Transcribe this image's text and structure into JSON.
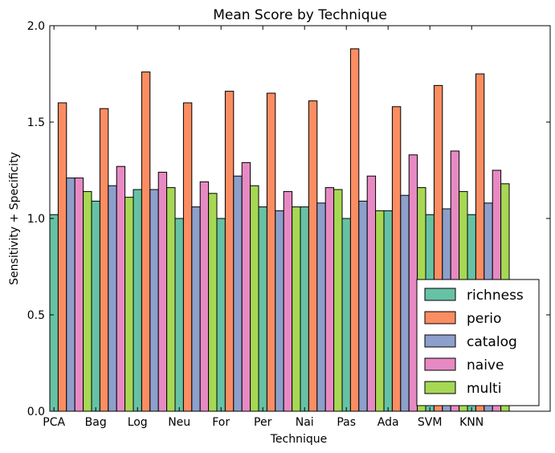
{
  "chart_data": {
    "type": "bar",
    "title": "Mean Score by Technique",
    "xlabel": "Technique",
    "ylabel": "Sensitivity + Specificity",
    "ylim": [
      0,
      2.0
    ],
    "yticks": [
      "0.0",
      "0.5",
      "1.0",
      "1.5",
      "2.0"
    ],
    "categories": [
      "PCA",
      "Bag",
      "Log",
      "Neu",
      "For",
      "Per",
      "Nai",
      "Pas",
      "Ada",
      "SVM",
      "KNN"
    ],
    "series": [
      {
        "name": "richness",
        "color": "#66c2a5",
        "values": [
          1.02,
          1.09,
          1.15,
          1.0,
          1.0,
          1.06,
          1.06,
          1.0,
          1.04,
          1.02,
          1.02
        ]
      },
      {
        "name": "perio",
        "color": "#fc8d62",
        "values": [
          1.6,
          1.57,
          1.76,
          1.6,
          1.66,
          1.65,
          1.61,
          1.88,
          1.58,
          1.69,
          1.75
        ]
      },
      {
        "name": "catalog",
        "color": "#8da0cb",
        "values": [
          1.21,
          1.17,
          1.15,
          1.06,
          1.22,
          1.04,
          1.08,
          1.09,
          1.12,
          1.05,
          1.08
        ]
      },
      {
        "name": "naive",
        "color": "#e78ac3",
        "values": [
          1.21,
          1.27,
          1.24,
          1.19,
          1.29,
          1.14,
          1.16,
          1.22,
          1.33,
          1.35,
          1.25
        ]
      },
      {
        "name": "multi",
        "color": "#a6d854",
        "values": [
          1.14,
          1.11,
          1.16,
          1.13,
          1.17,
          1.06,
          1.15,
          1.04,
          1.16,
          1.14,
          1.18
        ]
      }
    ],
    "legend_position": "lower-right",
    "grid": false
  }
}
